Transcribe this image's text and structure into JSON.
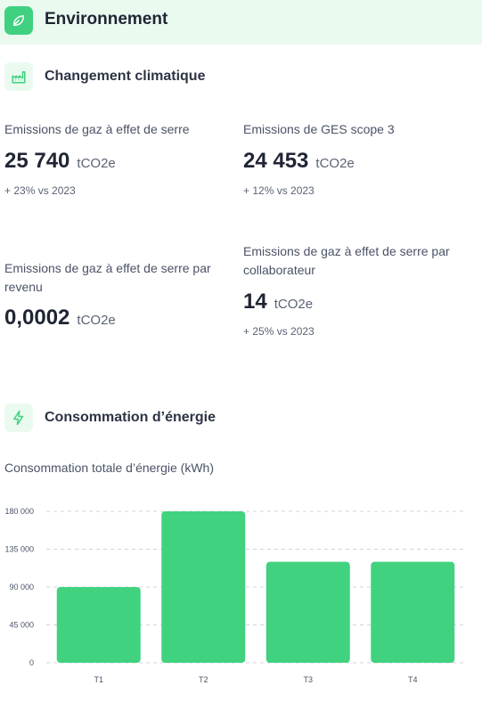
{
  "header": {
    "title": "Environnement",
    "icon": "leaf-icon",
    "accent": "#3fd17f",
    "background": "#eafaef"
  },
  "climate": {
    "title": "Changement climatique",
    "icon": "factory-icon",
    "metrics": [
      {
        "label": "Emissions de gaz à effet de serre",
        "value": "25 740",
        "unit": "tCO2e",
        "delta": "+ 23% vs 2023"
      },
      {
        "label": "Emissions de GES scope 3",
        "value": "24 453",
        "unit": "tCO2e",
        "delta": "+ 12% vs 2023"
      },
      {
        "label": "Emissions de gaz à effet de serre par revenu",
        "value": "0,0002",
        "unit": "tCO2e",
        "delta": ""
      },
      {
        "label": "Emissions de gaz à effet de serre par collaborateur",
        "value": "14",
        "unit": "tCO2e",
        "delta": "+ 25% vs 2023"
      }
    ]
  },
  "energy": {
    "title": "Consommation d’énergie",
    "icon": "lightning-icon",
    "chart_title": "Consommation totale d’énergie (kWh)"
  },
  "chart_data": {
    "type": "bar",
    "title": "Consommation totale d’énergie (kWh)",
    "categories": [
      "T1",
      "T2",
      "T3",
      "T4"
    ],
    "values": [
      90000,
      180000,
      120000,
      120000
    ],
    "ylim": [
      0,
      180000
    ],
    "yticks": [
      0,
      45000,
      90000,
      135000,
      180000
    ],
    "ytick_labels": [
      "0",
      "45 000",
      "90 000",
      "135 000",
      "180 000"
    ],
    "grid": true,
    "bar_color": "#41d280"
  }
}
